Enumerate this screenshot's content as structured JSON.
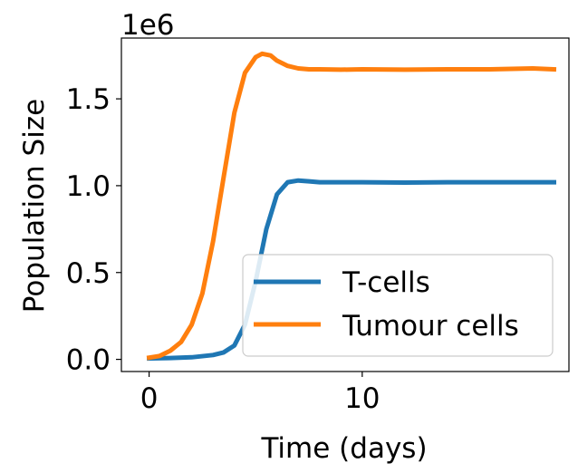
{
  "chart_data": {
    "type": "line",
    "xlabel": "Time (days)",
    "ylabel": "Population Size",
    "y_offset_label": "1e6",
    "xlim": [
      -1.3,
      19.7
    ],
    "ylim": [
      -0.07,
      1.85
    ],
    "xticks": [
      0,
      10
    ],
    "xtick_labels": [
      "0",
      "10"
    ],
    "yticks": [
      0.0,
      0.5,
      1.0,
      1.5
    ],
    "ytick_labels": [
      "0.0",
      "0.5",
      "1.0",
      "1.5"
    ],
    "grid": false,
    "legend_position": "lower right",
    "series": [
      {
        "name": "T-cells",
        "color": "#1f77b4",
        "x": [
          0,
          1,
          2,
          3,
          3.5,
          4,
          4.5,
          5,
          5.5,
          6,
          6.5,
          7,
          7.5,
          8,
          9,
          10,
          12,
          14,
          16,
          18,
          19
        ],
        "y": [
          0.005,
          0.008,
          0.012,
          0.025,
          0.04,
          0.08,
          0.2,
          0.45,
          0.75,
          0.95,
          1.02,
          1.03,
          1.025,
          1.02,
          1.02,
          1.02,
          1.018,
          1.02,
          1.02,
          1.02,
          1.02
        ]
      },
      {
        "name": "Tumour cells",
        "color": "#ff7f0e",
        "x": [
          0,
          0.5,
          1,
          1.5,
          2,
          2.5,
          3,
          3.5,
          4,
          4.5,
          5,
          5.3,
          5.7,
          6,
          6.5,
          7,
          7.5,
          8,
          9,
          10,
          12,
          14,
          16,
          18,
          19
        ],
        "y": [
          0.01,
          0.02,
          0.05,
          0.1,
          0.2,
          0.38,
          0.68,
          1.05,
          1.42,
          1.65,
          1.74,
          1.76,
          1.75,
          1.72,
          1.69,
          1.675,
          1.67,
          1.67,
          1.668,
          1.67,
          1.668,
          1.67,
          1.67,
          1.675,
          1.67
        ]
      }
    ]
  }
}
